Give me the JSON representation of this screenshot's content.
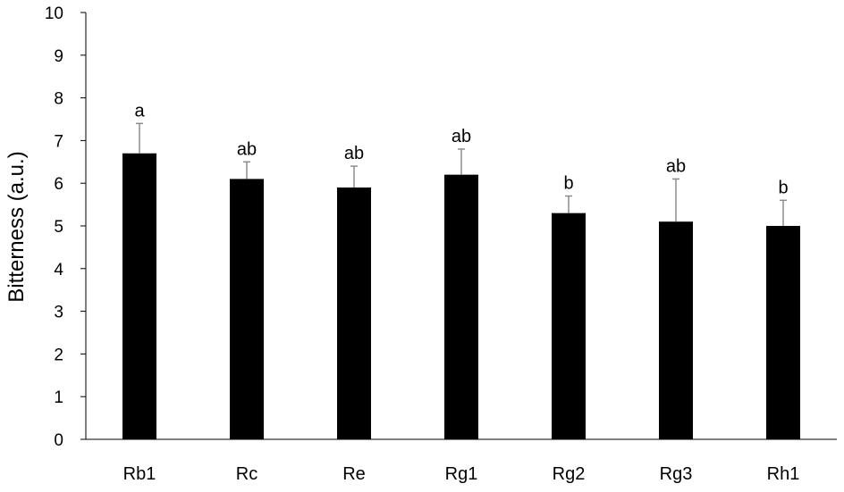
{
  "chart_data": {
    "type": "bar",
    "title": "",
    "xlabel": "",
    "ylabel": "Bitterness (a.u.)",
    "ylim": [
      0,
      10
    ],
    "yticks": [
      "0",
      "1",
      "2",
      "3",
      "4",
      "5",
      "6",
      "7",
      "8",
      "9",
      "10"
    ],
    "grid": false,
    "legend": "none",
    "categories": [
      "Rb1",
      "Rc",
      "Re",
      "Rg1",
      "Rg2",
      "Rg3",
      "Rh1"
    ],
    "values": [
      6.7,
      6.1,
      5.9,
      6.2,
      5.3,
      5.1,
      5.0
    ],
    "error_upper": [
      0.7,
      0.4,
      0.5,
      0.6,
      0.4,
      1.0,
      0.6
    ],
    "significance": [
      "a",
      "ab",
      "ab",
      "ab",
      "b",
      "ab",
      "b"
    ],
    "colors": {
      "bar": "#000000",
      "error": "#8c8c8c",
      "axis": "#000000"
    }
  }
}
